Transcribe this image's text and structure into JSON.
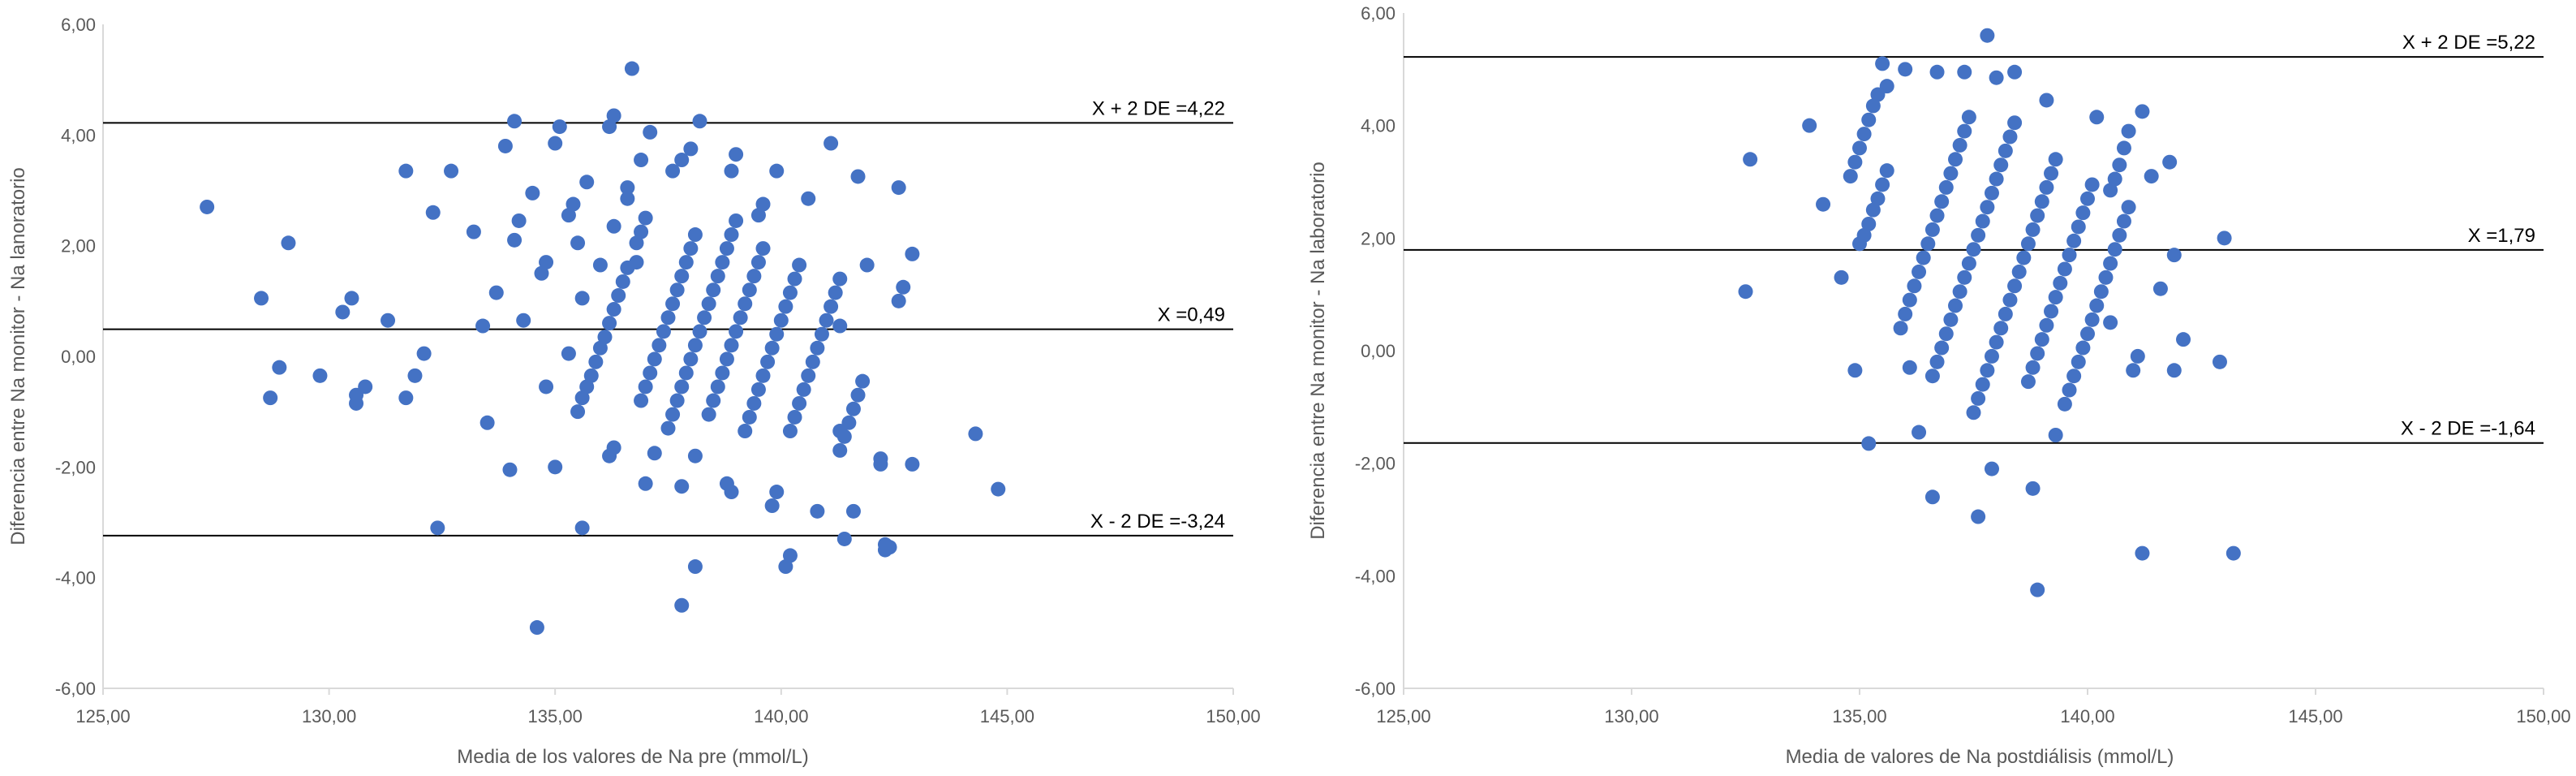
{
  "chart_data": [
    {
      "type": "scatter",
      "xlabel": "Media de los valores de Na pre (mmol/L)",
      "ylabel": "Diferencia entre  Na monitor - Na lanoratorio",
      "xlim": [
        125,
        150
      ],
      "ylim": [
        -6,
        6
      ],
      "x_ticks": [
        "125,00",
        "130,00",
        "135,00",
        "140,00",
        "145,00",
        "150,00"
      ],
      "y_ticks": [
        "6,00",
        "4,00",
        "2,00",
        "0,00",
        "-2,00",
        "-4,00",
        "-6,00"
      ],
      "grid": false,
      "point_color": "#4472C4",
      "reference_lines": [
        {
          "y": 4.22,
          "label": "X + 2 DE =4,22"
        },
        {
          "y": 0.49,
          "label": "X =0,49"
        },
        {
          "y": -3.24,
          "label": "X - 2 DE =-3,24"
        }
      ],
      "points": [
        [
          127.3,
          2.7
        ],
        [
          128.5,
          1.05
        ],
        [
          128.7,
          -0.75
        ],
        [
          128.9,
          -0.2
        ],
        [
          129.1,
          2.05
        ],
        [
          129.8,
          -0.35
        ],
        [
          130.3,
          0.8
        ],
        [
          130.5,
          1.05
        ],
        [
          130.6,
          -0.85
        ],
        [
          130.6,
          -0.7
        ],
        [
          130.8,
          -0.55
        ],
        [
          131.3,
          0.65
        ],
        [
          131.7,
          -0.75
        ],
        [
          131.7,
          3.35
        ],
        [
          131.9,
          -0.35
        ],
        [
          132.1,
          0.05
        ],
        [
          132.3,
          2.6
        ],
        [
          132.4,
          -3.1
        ],
        [
          132.7,
          3.35
        ],
        [
          133.2,
          2.25
        ],
        [
          133.4,
          0.55
        ],
        [
          133.5,
          -1.2
        ],
        [
          133.7,
          1.15
        ],
        [
          133.9,
          3.8
        ],
        [
          134.0,
          -2.05
        ],
        [
          134.1,
          2.1
        ],
        [
          134.1,
          4.25
        ],
        [
          134.2,
          2.45
        ],
        [
          134.3,
          0.65
        ],
        [
          134.5,
          2.95
        ],
        [
          134.7,
          1.5
        ],
        [
          134.8,
          -0.55
        ],
        [
          134.8,
          1.7
        ],
        [
          135.0,
          -2.0
        ],
        [
          135.0,
          3.85
        ],
        [
          135.1,
          4.15
        ],
        [
          135.3,
          2.55
        ],
        [
          135.3,
          0.05
        ],
        [
          135.4,
          2.75
        ],
        [
          135.5,
          2.05
        ],
        [
          135.6,
          -3.1
        ],
        [
          135.6,
          1.05
        ],
        [
          135.7,
          3.15
        ],
        [
          136.0,
          1.65
        ],
        [
          136.2,
          -1.8
        ],
        [
          136.3,
          2.35
        ],
        [
          136.2,
          4.15
        ],
        [
          136.3,
          4.35
        ],
        [
          136.6,
          2.85
        ],
        [
          136.6,
          3.05
        ],
        [
          136.7,
          5.2
        ],
        [
          136.8,
          1.7
        ],
        [
          136.9,
          3.55
        ],
        [
          137.0,
          -2.3
        ],
        [
          137.1,
          4.05
        ],
        [
          137.2,
          -1.75
        ],
        [
          137.6,
          3.35
        ],
        [
          137.8,
          3.55
        ],
        [
          137.8,
          -2.35
        ],
        [
          137.8,
          -4.5
        ],
        [
          138.0,
          3.75
        ],
        [
          138.1,
          -3.8
        ],
        [
          138.2,
          4.25
        ],
        [
          138.9,
          3.35
        ],
        [
          138.8,
          -2.3
        ],
        [
          138.9,
          -2.45
        ],
        [
          139.0,
          3.65
        ],
        [
          139.5,
          2.55
        ],
        [
          139.6,
          2.75
        ],
        [
          139.8,
          -2.7
        ],
        [
          139.9,
          3.35
        ],
        [
          140.1,
          -3.8
        ],
        [
          140.2,
          -3.6
        ],
        [
          140.6,
          2.85
        ],
        [
          140.8,
          -2.8
        ],
        [
          141.1,
          3.85
        ],
        [
          141.3,
          0.55
        ],
        [
          141.3,
          -1.35
        ],
        [
          141.4,
          -3.3
        ],
        [
          141.6,
          -2.8
        ],
        [
          141.7,
          3.25
        ],
        [
          141.9,
          1.65
        ],
        [
          142.2,
          -1.85
        ],
        [
          142.2,
          -1.95
        ],
        [
          142.3,
          -3.4
        ],
        [
          142.3,
          -3.5
        ],
        [
          142.4,
          -3.45
        ],
        [
          142.6,
          1.0
        ],
        [
          142.6,
          3.05
        ],
        [
          142.7,
          1.25
        ],
        [
          142.9,
          1.85
        ],
        [
          142.9,
          -1.95
        ],
        [
          144.3,
          -1.4
        ],
        [
          144.8,
          -2.4
        ],
        [
          134.6,
          -4.9
        ],
        [
          135.5,
          -1.0
        ],
        [
          135.6,
          -0.75
        ],
        [
          135.7,
          -0.55
        ],
        [
          135.8,
          -0.35
        ],
        [
          135.9,
          -0.1
        ],
        [
          136.0,
          0.15
        ],
        [
          136.1,
          0.35
        ],
        [
          136.2,
          0.6
        ],
        [
          136.3,
          0.85
        ],
        [
          136.4,
          1.1
        ],
        [
          136.5,
          1.35
        ],
        [
          136.6,
          1.6
        ],
        [
          136.8,
          2.05
        ],
        [
          136.9,
          2.25
        ],
        [
          137.0,
          2.5
        ],
        [
          136.3,
          -1.65
        ],
        [
          136.9,
          -0.8
        ],
        [
          137.0,
          -0.55
        ],
        [
          137.1,
          -0.3
        ],
        [
          137.2,
          -0.05
        ],
        [
          137.3,
          0.2
        ],
        [
          137.4,
          0.45
        ],
        [
          137.5,
          0.7
        ],
        [
          137.6,
          0.95
        ],
        [
          137.7,
          1.2
        ],
        [
          137.8,
          1.45
        ],
        [
          137.9,
          1.7
        ],
        [
          138.0,
          1.95
        ],
        [
          138.1,
          2.2
        ],
        [
          137.5,
          -1.3
        ],
        [
          137.6,
          -1.05
        ],
        [
          137.7,
          -0.8
        ],
        [
          137.8,
          -0.55
        ],
        [
          137.9,
          -0.3
        ],
        [
          138.0,
          -0.05
        ],
        [
          138.1,
          0.2
        ],
        [
          138.2,
          0.45
        ],
        [
          138.3,
          0.7
        ],
        [
          138.4,
          0.95
        ],
        [
          138.5,
          1.2
        ],
        [
          138.6,
          1.45
        ],
        [
          138.7,
          1.7
        ],
        [
          138.8,
          1.95
        ],
        [
          138.9,
          2.2
        ],
        [
          139.0,
          2.45
        ],
        [
          138.1,
          -1.8
        ],
        [
          138.4,
          -1.05
        ],
        [
          138.5,
          -0.8
        ],
        [
          138.6,
          -0.55
        ],
        [
          138.7,
          -0.3
        ],
        [
          138.8,
          -0.05
        ],
        [
          138.9,
          0.2
        ],
        [
          139.0,
          0.45
        ],
        [
          139.1,
          0.7
        ],
        [
          139.2,
          0.95
        ],
        [
          139.3,
          1.2
        ],
        [
          139.4,
          1.45
        ],
        [
          139.5,
          1.7
        ],
        [
          139.6,
          1.95
        ],
        [
          139.2,
          -1.35
        ],
        [
          139.3,
          -1.1
        ],
        [
          139.4,
          -0.85
        ],
        [
          139.5,
          -0.6
        ],
        [
          139.6,
          -0.35
        ],
        [
          139.7,
          -0.1
        ],
        [
          139.8,
          0.15
        ],
        [
          139.9,
          0.4
        ],
        [
          140.0,
          0.65
        ],
        [
          140.1,
          0.9
        ],
        [
          140.2,
          1.15
        ],
        [
          140.3,
          1.4
        ],
        [
          140.4,
          1.65
        ],
        [
          139.9,
          -2.45
        ],
        [
          140.2,
          -1.35
        ],
        [
          140.3,
          -1.1
        ],
        [
          140.4,
          -0.85
        ],
        [
          140.5,
          -0.6
        ],
        [
          140.6,
          -0.35
        ],
        [
          140.7,
          -0.1
        ],
        [
          140.8,
          0.15
        ],
        [
          140.9,
          0.4
        ],
        [
          141.0,
          0.65
        ],
        [
          141.1,
          0.9
        ],
        [
          141.2,
          1.15
        ],
        [
          141.3,
          1.4
        ],
        [
          141.3,
          -1.7
        ],
        [
          141.4,
          -1.45
        ],
        [
          141.5,
          -1.2
        ],
        [
          141.6,
          -0.95
        ],
        [
          141.7,
          -0.7
        ],
        [
          141.8,
          -0.45
        ]
      ]
    },
    {
      "type": "scatter",
      "xlabel": "Media de valores de Na postdiálisis (mmol/L)",
      "ylabel": "Diferencia entre Na monitor - Na laboratorio",
      "xlim": [
        125,
        150
      ],
      "ylim": [
        -6,
        6
      ],
      "x_ticks": [
        "125,00",
        "130,00",
        "135,00",
        "140,00",
        "145,00",
        "150,00"
      ],
      "y_ticks": [
        "6,00",
        "4,00",
        "2,00",
        "0,00",
        "-2,00",
        "-4,00",
        "-6,00"
      ],
      "grid": false,
      "point_color": "#4472C4",
      "reference_lines": [
        {
          "y": 5.22,
          "label": "X + 2 DE =5,22"
        },
        {
          "y": 1.79,
          "label": "X =1,79"
        },
        {
          "y": -1.64,
          "label": "X - 2 DE =-1,64"
        }
      ],
      "points": [
        [
          132.5,
          1.05
        ],
        [
          132.6,
          3.4
        ],
        [
          133.9,
          4.0
        ],
        [
          134.2,
          2.6
        ],
        [
          134.6,
          1.3
        ],
        [
          134.9,
          -0.35
        ],
        [
          135.2,
          -1.65
        ],
        [
          135.5,
          5.1
        ],
        [
          135.6,
          4.7
        ],
        [
          136.0,
          5.0
        ],
        [
          136.1,
          -0.3
        ],
        [
          136.3,
          -1.45
        ],
        [
          136.6,
          -2.6
        ],
        [
          136.7,
          4.95
        ],
        [
          137.3,
          4.95
        ],
        [
          137.6,
          -2.95
        ],
        [
          137.9,
          -2.1
        ],
        [
          137.8,
          5.6
        ],
        [
          138.0,
          4.85
        ],
        [
          138.4,
          4.95
        ],
        [
          138.8,
          -2.45
        ],
        [
          138.9,
          -4.25
        ],
        [
          139.3,
          -1.5
        ],
        [
          139.1,
          4.45
        ],
        [
          140.2,
          4.15
        ],
        [
          141.2,
          4.25
        ],
        [
          141.2,
          -3.6
        ],
        [
          141.8,
          3.35
        ],
        [
          142.1,
          0.2
        ],
        [
          142.9,
          -0.2
        ],
        [
          143.0,
          2.0
        ],
        [
          143.2,
          -3.6
        ],
        [
          141.4,
          3.1
        ],
        [
          141.6,
          1.1
        ],
        [
          141.9,
          1.7
        ],
        [
          141.9,
          -0.35
        ],
        [
          141.0,
          -0.35
        ],
        [
          141.1,
          -0.1
        ],
        [
          140.5,
          0.5
        ],
        [
          134.8,
          3.1
        ],
        [
          134.9,
          3.35
        ],
        [
          135.0,
          3.6
        ],
        [
          135.1,
          3.85
        ],
        [
          135.2,
          4.1
        ],
        [
          135.3,
          4.35
        ],
        [
          135.4,
          4.55
        ],
        [
          135.0,
          1.9
        ],
        [
          135.1,
          2.05
        ],
        [
          135.2,
          2.25
        ],
        [
          135.3,
          2.5
        ],
        [
          135.4,
          2.7
        ],
        [
          135.5,
          2.95
        ],
        [
          135.6,
          3.2
        ],
        [
          135.9,
          0.4
        ],
        [
          136.0,
          0.65
        ],
        [
          136.1,
          0.9
        ],
        [
          136.2,
          1.15
        ],
        [
          136.3,
          1.4
        ],
        [
          136.4,
          1.65
        ],
        [
          136.5,
          1.9
        ],
        [
          136.6,
          2.15
        ],
        [
          136.7,
          2.4
        ],
        [
          136.8,
          2.65
        ],
        [
          136.9,
          2.9
        ],
        [
          137.0,
          3.15
        ],
        [
          137.1,
          3.4
        ],
        [
          137.2,
          3.65
        ],
        [
          137.3,
          3.9
        ],
        [
          137.4,
          4.15
        ],
        [
          136.6,
          -0.45
        ],
        [
          136.7,
          -0.2
        ],
        [
          136.8,
          0.05
        ],
        [
          136.9,
          0.3
        ],
        [
          137.0,
          0.55
        ],
        [
          137.1,
          0.8
        ],
        [
          137.2,
          1.05
        ],
        [
          137.3,
          1.3
        ],
        [
          137.4,
          1.55
        ],
        [
          137.5,
          1.8
        ],
        [
          137.6,
          2.05
        ],
        [
          137.7,
          2.3
        ],
        [
          137.8,
          2.55
        ],
        [
          137.9,
          2.8
        ],
        [
          138.0,
          3.05
        ],
        [
          138.1,
          3.3
        ],
        [
          138.2,
          3.55
        ],
        [
          138.3,
          3.8
        ],
        [
          138.4,
          4.05
        ],
        [
          137.5,
          -1.1
        ],
        [
          137.6,
          -0.85
        ],
        [
          137.7,
          -0.6
        ],
        [
          137.8,
          -0.35
        ],
        [
          137.9,
          -0.1
        ],
        [
          138.0,
          0.15
        ],
        [
          138.1,
          0.4
        ],
        [
          138.2,
          0.65
        ],
        [
          138.3,
          0.9
        ],
        [
          138.4,
          1.15
        ],
        [
          138.5,
          1.4
        ],
        [
          138.6,
          1.65
        ],
        [
          138.7,
          1.9
        ],
        [
          138.8,
          2.15
        ],
        [
          138.9,
          2.4
        ],
        [
          139.0,
          2.65
        ],
        [
          139.1,
          2.9
        ],
        [
          139.2,
          3.15
        ],
        [
          139.3,
          3.4
        ],
        [
          138.7,
          -0.55
        ],
        [
          138.8,
          -0.3
        ],
        [
          138.9,
          -0.05
        ],
        [
          139.0,
          0.2
        ],
        [
          139.1,
          0.45
        ],
        [
          139.2,
          0.7
        ],
        [
          139.3,
          0.95
        ],
        [
          139.4,
          1.2
        ],
        [
          139.5,
          1.45
        ],
        [
          139.6,
          1.7
        ],
        [
          139.7,
          1.95
        ],
        [
          139.8,
          2.2
        ],
        [
          139.9,
          2.45
        ],
        [
          140.0,
          2.7
        ],
        [
          140.1,
          2.95
        ],
        [
          139.5,
          -0.95
        ],
        [
          139.6,
          -0.7
        ],
        [
          139.7,
          -0.45
        ],
        [
          139.8,
          -0.2
        ],
        [
          139.9,
          0.05
        ],
        [
          140.0,
          0.3
        ],
        [
          140.1,
          0.55
        ],
        [
          140.2,
          0.8
        ],
        [
          140.3,
          1.05
        ],
        [
          140.4,
          1.3
        ],
        [
          140.5,
          1.55
        ],
        [
          140.6,
          1.8
        ],
        [
          140.7,
          2.05
        ],
        [
          140.8,
          2.3
        ],
        [
          140.9,
          2.55
        ],
        [
          140.5,
          2.85
        ],
        [
          140.6,
          3.05
        ],
        [
          140.7,
          3.3
        ],
        [
          140.8,
          3.6
        ],
        [
          140.9,
          3.9
        ]
      ]
    }
  ]
}
